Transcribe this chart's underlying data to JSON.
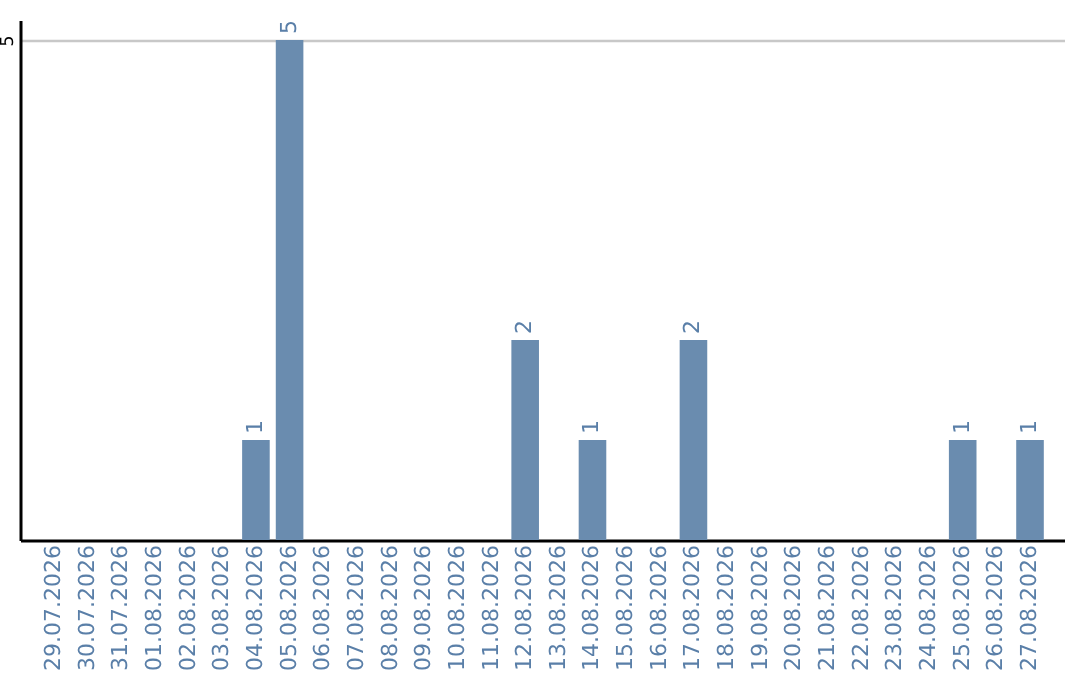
{
  "chart_data": {
    "type": "bar",
    "categories": [
      "29.07.2026",
      "30.07.2026",
      "31.07.2026",
      "01.08.2026",
      "02.08.2026",
      "03.08.2026",
      "04.08.2026",
      "05.08.2026",
      "06.08.2026",
      "07.08.2026",
      "08.08.2026",
      "09.08.2026",
      "10.08.2026",
      "11.08.2026",
      "12.08.2026",
      "13.08.2026",
      "14.08.2026",
      "15.08.2026",
      "16.08.2026",
      "17.08.2026",
      "18.08.2026",
      "19.08.2026",
      "20.08.2026",
      "21.08.2026",
      "22.08.2026",
      "23.08.2026",
      "24.08.2026",
      "25.08.2026",
      "26.08.2026",
      "27.08.2026"
    ],
    "values": [
      0,
      0,
      0,
      0,
      0,
      0,
      1,
      5,
      0,
      0,
      0,
      0,
      0,
      0,
      2,
      0,
      1,
      0,
      0,
      2,
      0,
      0,
      0,
      0,
      0,
      0,
      0,
      1,
      0,
      1
    ],
    "value_labels": [
      null,
      null,
      null,
      null,
      null,
      null,
      "1",
      "5",
      null,
      null,
      null,
      null,
      null,
      null,
      "2",
      null,
      "1",
      null,
      null,
      "2",
      null,
      null,
      null,
      null,
      null,
      null,
      null,
      "1",
      null,
      "1"
    ],
    "color": "#6a8caf",
    "ylim": [
      0,
      5.2
    ],
    "yticks": [
      5
    ],
    "grid": "y"
  }
}
